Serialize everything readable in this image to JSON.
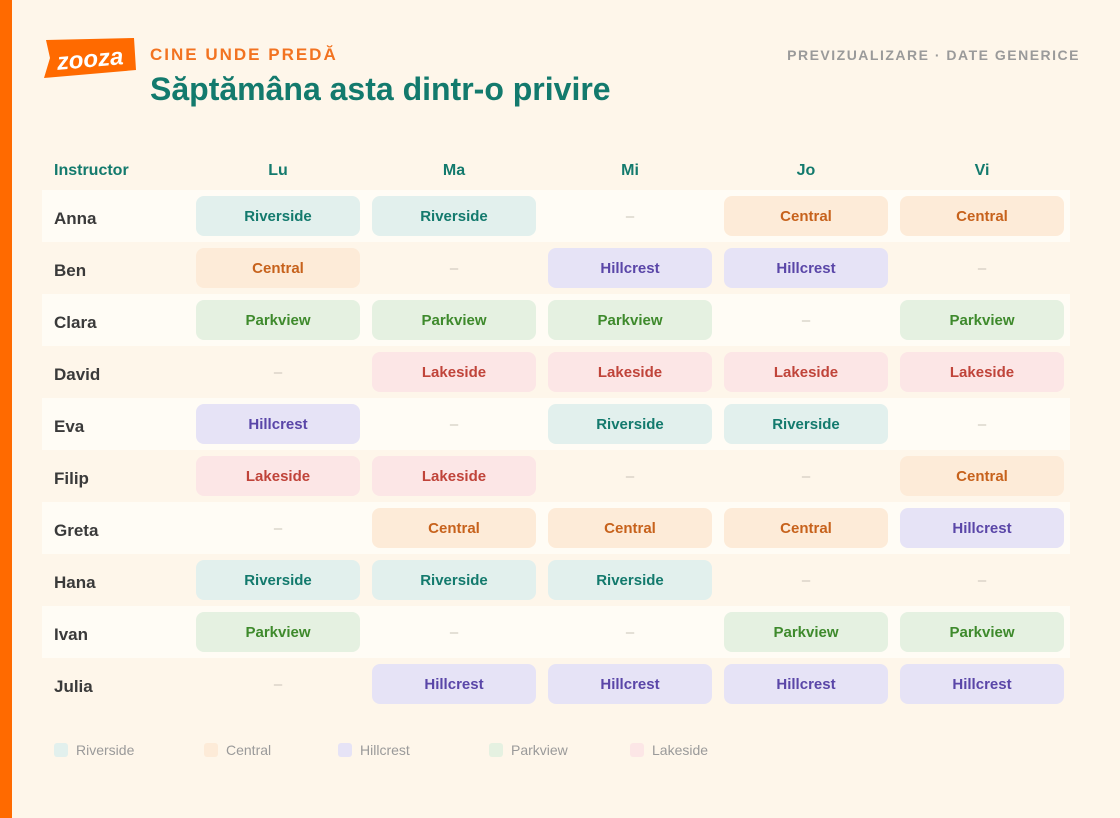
{
  "brand": {
    "logo_text": "zooza",
    "accent_color": "#ff6a00"
  },
  "header": {
    "kicker": "CINE UNDE PREDĂ",
    "title": "Săptămâna asta dintr-o privire",
    "preview_label": "PREVIZUALIZARE · DATE GENERICE"
  },
  "table": {
    "instructor_header": "Instructor",
    "days": [
      "Lu",
      "Ma",
      "Mi",
      "Jo",
      "Vi"
    ],
    "empty_symbol": "–",
    "rows": [
      {
        "name": "Anna",
        "slots": [
          "Riverside",
          "Riverside",
          "",
          "Central",
          "Central"
        ]
      },
      {
        "name": "Ben",
        "slots": [
          "Central",
          "",
          "Hillcrest",
          "Hillcrest",
          ""
        ]
      },
      {
        "name": "Clara",
        "slots": [
          "Parkview",
          "Parkview",
          "Parkview",
          "",
          "Parkview"
        ]
      },
      {
        "name": "David",
        "slots": [
          "",
          "Lakeside",
          "Lakeside",
          "Lakeside",
          "Lakeside"
        ]
      },
      {
        "name": "Eva",
        "slots": [
          "Hillcrest",
          "",
          "Riverside",
          "Riverside",
          ""
        ]
      },
      {
        "name": "Filip",
        "slots": [
          "Lakeside",
          "Lakeside",
          "",
          "",
          "Central"
        ]
      },
      {
        "name": "Greta",
        "slots": [
          "",
          "Central",
          "Central",
          "Central",
          "Hillcrest"
        ]
      },
      {
        "name": "Hana",
        "slots": [
          "Riverside",
          "Riverside",
          "Riverside",
          "",
          ""
        ]
      },
      {
        "name": "Ivan",
        "slots": [
          "Parkview",
          "",
          "",
          "Parkview",
          "Parkview"
        ]
      },
      {
        "name": "Julia",
        "slots": [
          "",
          "Hillcrest",
          "Hillcrest",
          "Hillcrest",
          "Hillcrest"
        ]
      }
    ]
  },
  "locations": {
    "Riverside": {
      "bg": "#e2f0ed",
      "fg": "#137a6d"
    },
    "Central": {
      "bg": "#fdebd8",
      "fg": "#c7621c"
    },
    "Hillcrest": {
      "bg": "#e6e3f6",
      "fg": "#5a46a8"
    },
    "Parkview": {
      "bg": "#e5f1e1",
      "fg": "#3e8a2c"
    },
    "Lakeside": {
      "bg": "#fce6e6",
      "fg": "#c0443a"
    }
  },
  "legend": [
    "Riverside",
    "Central",
    "Hillcrest",
    "Parkview",
    "Lakeside"
  ]
}
